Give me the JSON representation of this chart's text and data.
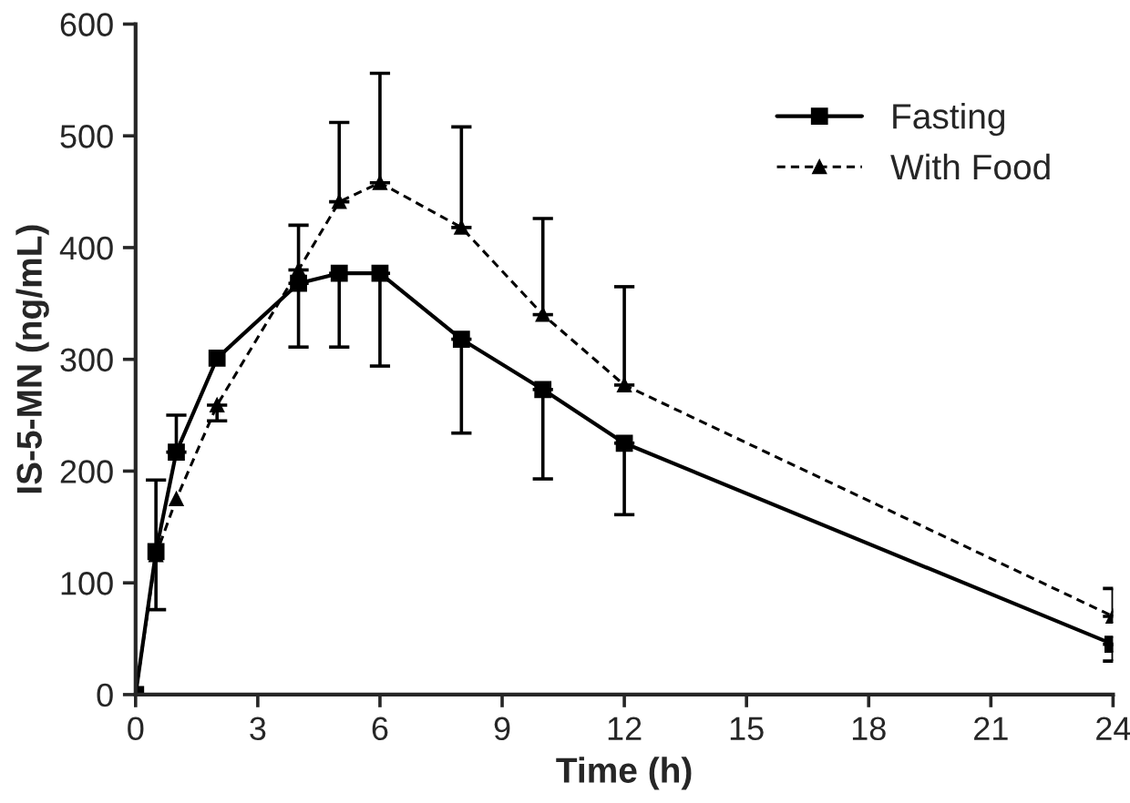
{
  "chart_data": {
    "type": "line",
    "xlabel": "Time (h)",
    "ylabel": "IS-5-MN (ng/mL)",
    "x": [
      0,
      0.5,
      1,
      2,
      4,
      5,
      6,
      8,
      10,
      12,
      24
    ],
    "series": [
      {
        "name": "Fasting",
        "color": "#000000",
        "marker": "square",
        "line_style": "solid",
        "values": [
          0,
          128,
          217,
          301,
          368,
          377,
          377,
          318,
          273,
          225,
          45
        ],
        "errors": [
          null,
          [
            76,
            192
          ],
          [
            217,
            250
          ],
          null,
          [
            311,
            368
          ],
          [
            311,
            377
          ],
          [
            294,
            377
          ],
          [
            234,
            318
          ],
          [
            193,
            273
          ],
          [
            161,
            225
          ],
          [
            30,
            45
          ]
        ]
      },
      {
        "name": "With Food",
        "color": "#000000",
        "marker": "triangle",
        "line_style": "dashed",
        "values": [
          0,
          125,
          175,
          259,
          380,
          441,
          458,
          418,
          340,
          277,
          70
        ],
        "errors": [
          null,
          null,
          null,
          [
            245,
            259
          ],
          [
            380,
            420
          ],
          [
            441,
            512
          ],
          [
            458,
            556
          ],
          [
            418,
            508
          ],
          [
            340,
            426
          ],
          [
            277,
            365
          ],
          [
            70,
            95
          ]
        ]
      }
    ],
    "xlim": [
      0,
      24
    ],
    "xticks": [
      0,
      3,
      6,
      9,
      12,
      15,
      18,
      21,
      24
    ],
    "ylim": [
      0,
      600
    ],
    "yticks": [
      0,
      100,
      200,
      300,
      400,
      500,
      600
    ],
    "grid": false,
    "legend": "top right"
  }
}
